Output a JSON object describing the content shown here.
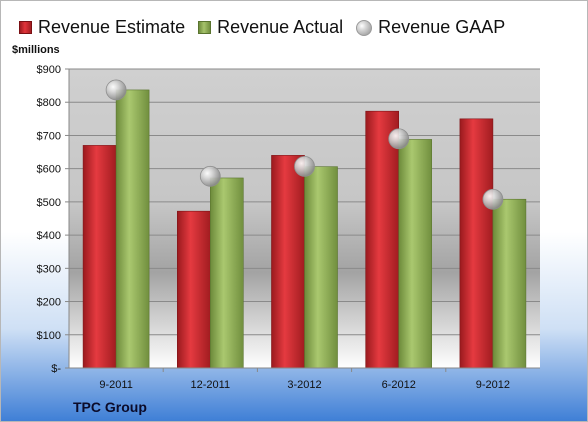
{
  "legend": {
    "estimate": "Revenue Estimate",
    "actual": "Revenue Actual",
    "gaap": "Revenue GAAP"
  },
  "units_label": "$millions",
  "company": "TPC Group",
  "colors": {
    "estimate": "#d42a30",
    "actual": "#9ab85e",
    "gaap": "#bdbdbd"
  },
  "chart_data": {
    "type": "bar",
    "categories": [
      "9-2011",
      "12-2011",
      "3-2012",
      "6-2012",
      "9-2012"
    ],
    "series": [
      {
        "name": "Revenue Estimate",
        "values": [
          670,
          472,
          640,
          773,
          750
        ]
      },
      {
        "name": "Revenue Actual",
        "values": [
          837,
          572,
          606,
          688,
          508
        ]
      },
      {
        "name": "Revenue GAAP",
        "values": [
          837,
          577,
          607,
          690,
          508
        ]
      }
    ],
    "y_tick_labels": [
      "$-",
      "$100",
      "$200",
      "$300",
      "$400",
      "$500",
      "$600",
      "$700",
      "$800",
      "$900"
    ],
    "ylabel": "$millions",
    "ylim": [
      0,
      900
    ],
    "grid": true,
    "legend_position": "top"
  }
}
